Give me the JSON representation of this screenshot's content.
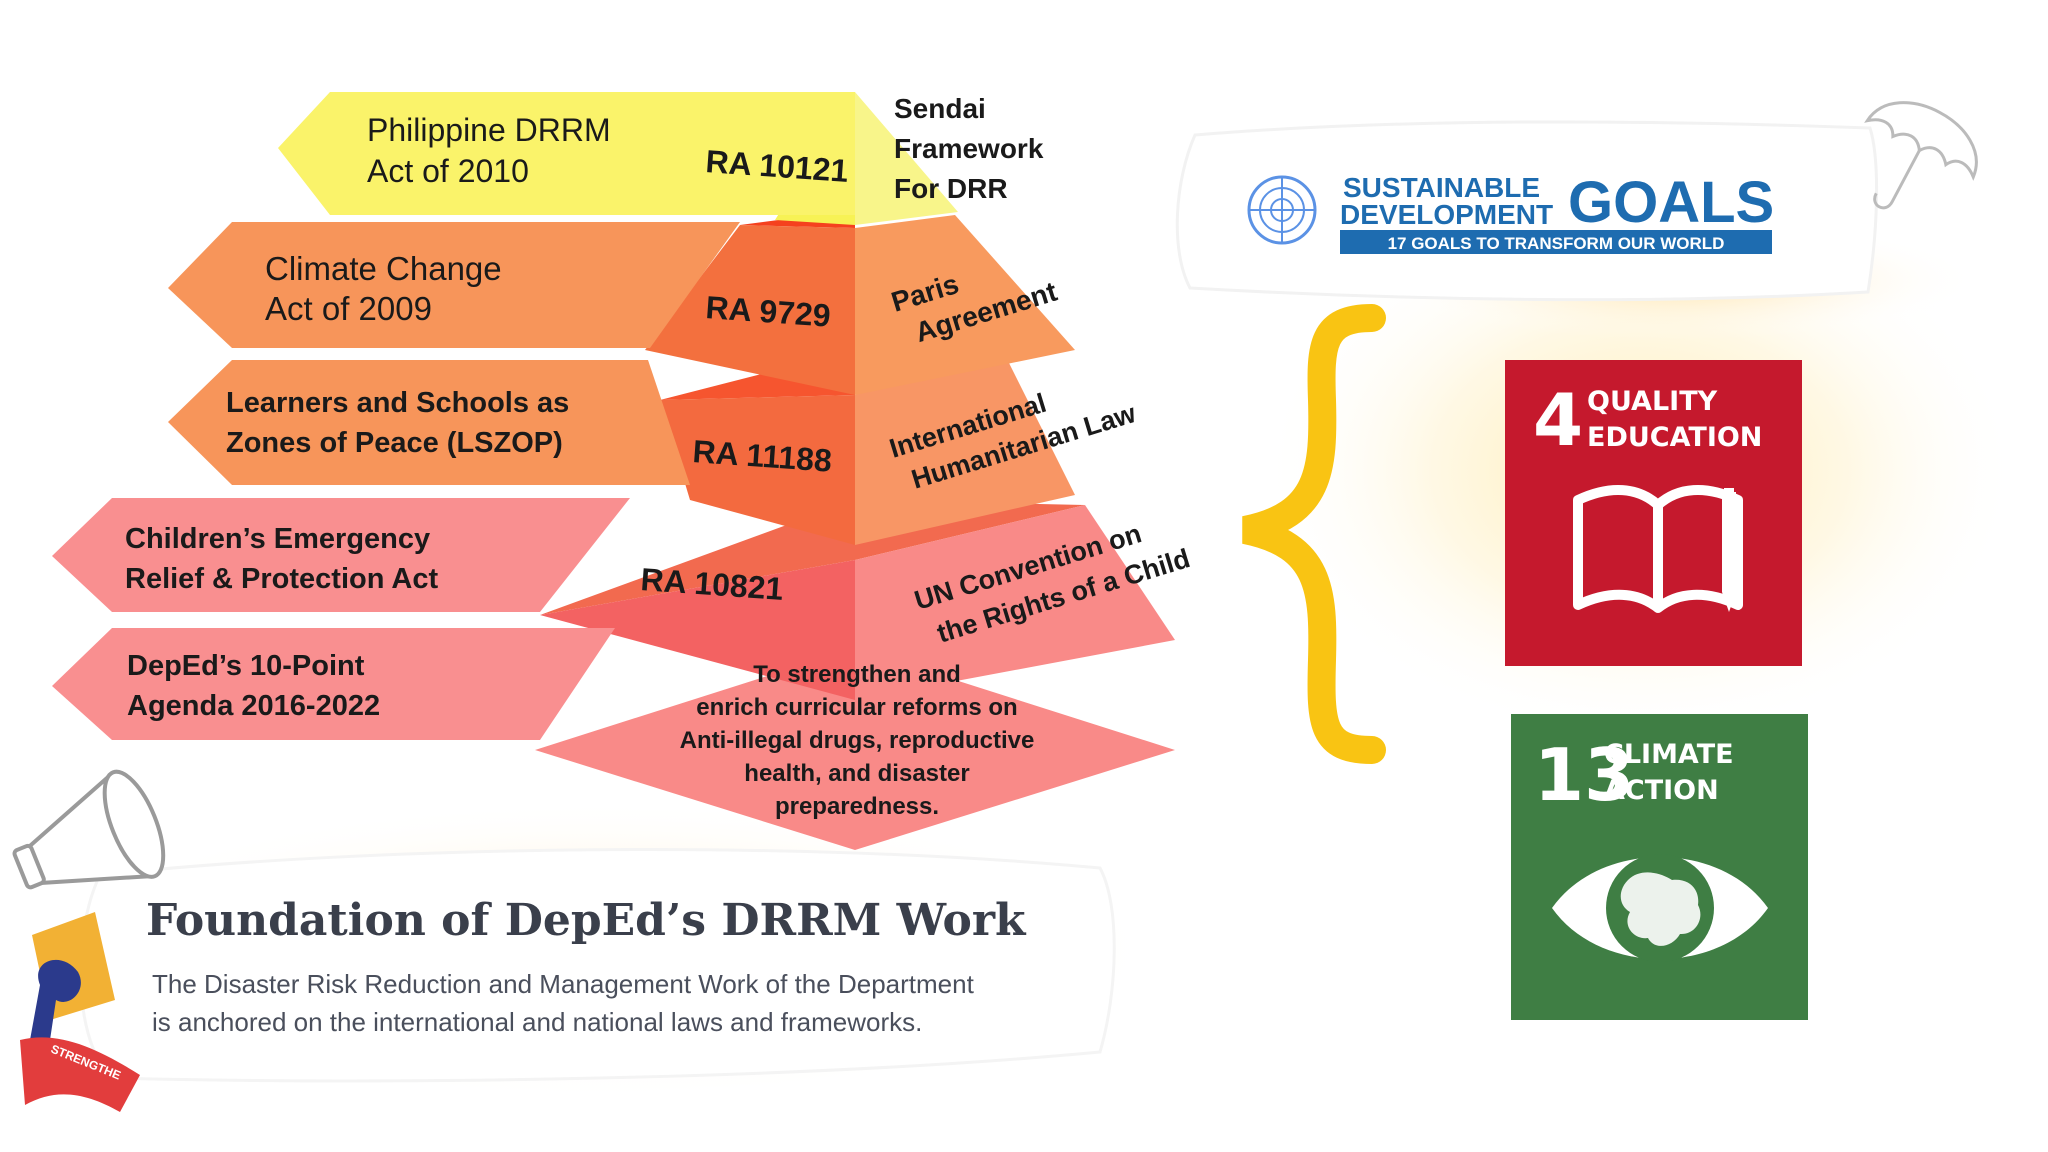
{
  "laws": [
    {
      "line1": "Philippine DRRM",
      "line2": "Act of 2010"
    },
    {
      "line1": "Climate Change",
      "line2": "Act of 2009"
    },
    {
      "line1": "Learners and Schools as",
      "line2": "Zones of Peace (LSZOP)"
    },
    {
      "line1": "Children’s Emergency",
      "line2": "Relief & Protection Act"
    },
    {
      "line1": "DepEd’s 10-Point",
      "line2": "Agenda 2016-2022"
    }
  ],
  "republic_acts": [
    "RA 10121",
    "RA 9729",
    "RA 11188",
    "RA 10821"
  ],
  "frameworks": {
    "sendai": [
      "Sendai",
      "Framework",
      "For DRR"
    ],
    "paris": [
      "Paris",
      "Agreement"
    ],
    "ihl": [
      "International",
      "Humanitarian Law"
    ],
    "uncrc": [
      "UN Convention on",
      "the Rights of a Child"
    ]
  },
  "agenda_text": [
    "To strengthen and",
    "enrich curricular reforms on",
    "Anti-illegal drugs, reproductive",
    "health, and disaster",
    "preparedness."
  ],
  "sdg_banner": {
    "line1": "SUSTAINABLE",
    "line2": "DEVELOPMENT",
    "goals": "GOALS",
    "tagline": "17 GOALS TO TRANSFORM OUR WORLD"
  },
  "sdg4": {
    "number": "4",
    "line1": "QUALITY",
    "line2": "EDUCATION",
    "color": "#C5192D"
  },
  "sdg13": {
    "number": "13",
    "line1": "CLIMATE",
    "line2": "ACTION",
    "color": "#3F7E44"
  },
  "foundation": {
    "title": "Foundation of DepEd’s DRRM Work",
    "body_line1": "The Disaster Risk Reduction and Management Work of the Department",
    "body_line2": "is anchored on the international and national laws and frameworks."
  },
  "ribbon_text": "STRENGTHE",
  "colors": {
    "yellow": "#FAF36A",
    "orange": "#F7955A",
    "orange_dark": "#F26A3A",
    "pink": "#F9898A",
    "red": "#F36262",
    "brace": "#F9C413",
    "sdg_blue": "#1E6CB0"
  }
}
